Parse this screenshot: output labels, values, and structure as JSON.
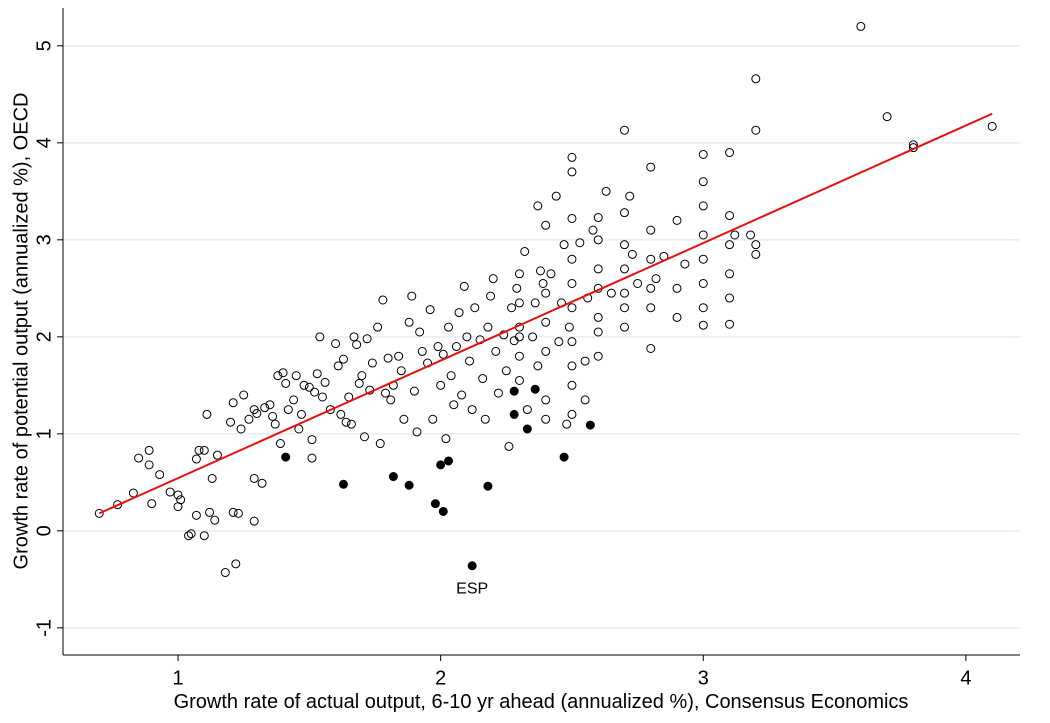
{
  "chart_data": {
    "type": "scatter",
    "xlabel": "Growth rate of actual output, 6-10 yr ahead (annualized %), Consensus Economics",
    "ylabel": "Growth rate of potential output (annualized %), OECD",
    "xlim": [
      0.562,
      4.206
    ],
    "ylim": [
      -1.28,
      5.39
    ],
    "xticks": [
      1,
      2,
      3,
      4
    ],
    "yticks": [
      -1,
      0,
      1,
      2,
      3,
      4,
      5
    ],
    "grid": true,
    "series": [
      {
        "color": "#000000",
        "filled": false,
        "points": [
          [
            0.7,
            0.18
          ],
          [
            0.77,
            0.27
          ],
          [
            0.83,
            0.39
          ],
          [
            0.85,
            0.75
          ],
          [
            0.89,
            0.83
          ],
          [
            0.89,
            0.68
          ],
          [
            0.9,
            0.28
          ],
          [
            0.93,
            0.58
          ],
          [
            0.97,
            0.4
          ],
          [
            1.0,
            0.37
          ],
          [
            1.0,
            0.25
          ],
          [
            1.01,
            0.32
          ],
          [
            1.04,
            -0.05
          ],
          [
            1.05,
            -0.03
          ],
          [
            1.07,
            0.74
          ],
          [
            1.07,
            0.16
          ],
          [
            1.08,
            0.83
          ],
          [
            1.1,
            0.83
          ],
          [
            1.1,
            -0.05
          ],
          [
            1.11,
            1.2
          ],
          [
            1.12,
            0.19
          ],
          [
            1.13,
            0.54
          ],
          [
            1.14,
            0.11
          ],
          [
            1.15,
            0.78
          ],
          [
            1.18,
            -0.43
          ],
          [
            1.2,
            1.12
          ],
          [
            1.21,
            0.19
          ],
          [
            1.21,
            1.32
          ],
          [
            1.22,
            -0.34
          ],
          [
            1.23,
            0.18
          ],
          [
            1.24,
            1.05
          ],
          [
            1.25,
            1.4
          ],
          [
            1.27,
            1.15
          ],
          [
            1.29,
            1.25
          ],
          [
            1.29,
            0.1
          ],
          [
            1.29,
            0.54
          ],
          [
            1.3,
            1.21
          ],
          [
            1.32,
            0.49
          ],
          [
            1.33,
            1.27
          ],
          [
            1.35,
            1.3
          ],
          [
            1.36,
            1.18
          ],
          [
            1.37,
            1.1
          ],
          [
            1.38,
            1.6
          ],
          [
            1.39,
            0.9
          ],
          [
            1.4,
            1.63
          ],
          [
            1.41,
            1.52
          ],
          [
            1.42,
            1.25
          ],
          [
            1.44,
            1.35
          ],
          [
            1.45,
            1.6
          ],
          [
            1.46,
            1.05
          ],
          [
            1.47,
            1.2
          ],
          [
            1.48,
            1.5
          ],
          [
            1.5,
            1.48
          ],
          [
            1.51,
            0.94
          ],
          [
            1.51,
            0.75
          ],
          [
            1.52,
            1.43
          ],
          [
            1.53,
            1.62
          ],
          [
            1.54,
            2.0
          ],
          [
            1.55,
            1.38
          ],
          [
            1.56,
            1.53
          ],
          [
            1.58,
            1.25
          ],
          [
            1.6,
            1.93
          ],
          [
            1.61,
            1.7
          ],
          [
            1.62,
            1.2
          ],
          [
            1.63,
            1.77
          ],
          [
            1.64,
            1.12
          ],
          [
            1.65,
            1.38
          ],
          [
            1.66,
            1.1
          ],
          [
            1.67,
            2.0
          ],
          [
            1.68,
            1.92
          ],
          [
            1.69,
            1.52
          ],
          [
            1.7,
            1.6
          ],
          [
            1.71,
            0.97
          ],
          [
            1.72,
            1.98
          ],
          [
            1.73,
            1.45
          ],
          [
            1.74,
            1.73
          ],
          [
            1.76,
            2.1
          ],
          [
            1.77,
            0.9
          ],
          [
            1.78,
            2.38
          ],
          [
            1.79,
            1.42
          ],
          [
            1.8,
            1.78
          ],
          [
            1.81,
            1.35
          ],
          [
            1.82,
            1.5
          ],
          [
            1.84,
            1.8
          ],
          [
            1.85,
            1.65
          ],
          [
            1.86,
            1.15
          ],
          [
            1.88,
            2.15
          ],
          [
            1.89,
            2.42
          ],
          [
            1.9,
            1.44
          ],
          [
            1.91,
            1.02
          ],
          [
            1.92,
            2.05
          ],
          [
            1.93,
            1.85
          ],
          [
            1.95,
            1.73
          ],
          [
            1.96,
            2.28
          ],
          [
            1.97,
            1.15
          ],
          [
            1.99,
            1.9
          ],
          [
            2.0,
            1.5
          ],
          [
            2.01,
            1.82
          ],
          [
            2.02,
            0.95
          ],
          [
            2.03,
            2.1
          ],
          [
            2.04,
            1.6
          ],
          [
            2.05,
            1.3
          ],
          [
            2.06,
            1.9
          ],
          [
            2.07,
            2.25
          ],
          [
            2.08,
            1.4
          ],
          [
            2.09,
            2.52
          ],
          [
            2.1,
            2.0
          ],
          [
            2.11,
            1.75
          ],
          [
            2.12,
            1.25
          ],
          [
            2.13,
            2.3
          ],
          [
            2.15,
            1.97
          ],
          [
            2.16,
            1.57
          ],
          [
            2.17,
            1.15
          ],
          [
            2.18,
            2.1
          ],
          [
            2.19,
            2.42
          ],
          [
            2.2,
            2.6
          ],
          [
            2.21,
            1.85
          ],
          [
            2.22,
            1.42
          ],
          [
            2.24,
            2.02
          ],
          [
            2.25,
            1.65
          ],
          [
            2.26,
            0.87
          ],
          [
            2.27,
            2.3
          ],
          [
            2.28,
            1.96
          ],
          [
            2.29,
            2.5
          ],
          [
            2.3,
            1.55
          ],
          [
            2.3,
            1.8
          ],
          [
            2.3,
            2.1
          ],
          [
            2.3,
            2.35
          ],
          [
            2.3,
            2.65
          ],
          [
            2.3,
            2.0
          ],
          [
            2.32,
            2.88
          ],
          [
            2.33,
            1.25
          ],
          [
            2.35,
            2.0
          ],
          [
            2.36,
            2.35
          ],
          [
            2.37,
            1.7
          ],
          [
            2.38,
            2.68
          ],
          [
            2.39,
            2.55
          ],
          [
            2.4,
            3.15
          ],
          [
            2.4,
            1.35
          ],
          [
            2.4,
            1.85
          ],
          [
            2.4,
            2.15
          ],
          [
            2.4,
            2.45
          ],
          [
            2.4,
            1.15
          ],
          [
            2.42,
            2.65
          ],
          [
            2.44,
            3.45
          ],
          [
            2.45,
            1.95
          ],
          [
            2.46,
            2.35
          ],
          [
            2.47,
            2.95
          ],
          [
            2.48,
            1.1
          ],
          [
            2.49,
            2.1
          ],
          [
            2.5,
            3.85
          ],
          [
            2.5,
            3.7
          ],
          [
            2.5,
            3.22
          ],
          [
            2.5,
            2.8
          ],
          [
            2.5,
            2.55
          ],
          [
            2.5,
            2.3
          ],
          [
            2.5,
            1.95
          ],
          [
            2.5,
            1.7
          ],
          [
            2.5,
            1.5
          ],
          [
            2.5,
            1.2
          ],
          [
            2.53,
            2.97
          ],
          [
            2.55,
            1.35
          ],
          [
            2.56,
            2.4
          ],
          [
            2.58,
            3.1
          ],
          [
            2.6,
            2.05
          ],
          [
            2.6,
            1.8
          ],
          [
            2.6,
            2.2
          ],
          [
            2.6,
            2.5
          ],
          [
            2.6,
            2.7
          ],
          [
            2.6,
            3.0
          ],
          [
            2.6,
            3.23
          ],
          [
            2.63,
            3.5
          ],
          [
            2.65,
            2.45
          ],
          [
            2.7,
            4.13
          ],
          [
            2.7,
            3.28
          ],
          [
            2.7,
            2.95
          ],
          [
            2.7,
            2.7
          ],
          [
            2.7,
            2.45
          ],
          [
            2.7,
            2.1
          ],
          [
            2.7,
            2.3
          ],
          [
            2.72,
            3.45
          ],
          [
            2.73,
            2.85
          ],
          [
            2.75,
            2.55
          ],
          [
            2.8,
            3.75
          ],
          [
            2.8,
            3.1
          ],
          [
            2.8,
            2.8
          ],
          [
            2.8,
            2.5
          ],
          [
            2.8,
            2.3
          ],
          [
            2.8,
            1.88
          ],
          [
            2.82,
            2.6
          ],
          [
            2.85,
            2.83
          ],
          [
            2.9,
            3.2
          ],
          [
            2.9,
            2.5
          ],
          [
            2.9,
            2.2
          ],
          [
            2.93,
            2.75
          ],
          [
            3.0,
            3.88
          ],
          [
            3.0,
            3.6
          ],
          [
            3.0,
            3.35
          ],
          [
            3.0,
            3.05
          ],
          [
            3.0,
            2.8
          ],
          [
            3.0,
            2.55
          ],
          [
            3.0,
            2.12
          ],
          [
            3.0,
            2.3
          ],
          [
            3.1,
            3.9
          ],
          [
            3.1,
            3.25
          ],
          [
            3.1,
            2.95
          ],
          [
            3.1,
            2.65
          ],
          [
            3.1,
            2.4
          ],
          [
            3.1,
            2.13
          ],
          [
            3.12,
            3.05
          ],
          [
            3.18,
            3.05
          ],
          [
            3.2,
            4.66
          ],
          [
            3.2,
            4.13
          ],
          [
            3.2,
            2.95
          ],
          [
            3.2,
            2.85
          ],
          [
            3.6,
            5.2
          ],
          [
            3.7,
            4.27
          ],
          [
            3.8,
            3.98
          ],
          [
            3.8,
            3.95
          ],
          [
            4.1,
            4.17
          ],
          [
            2.37,
            3.35
          ],
          [
            2.55,
            1.75
          ]
        ]
      },
      {
        "color": "#000000",
        "filled": true,
        "points": [
          [
            1.41,
            0.76
          ],
          [
            1.63,
            0.48
          ],
          [
            1.82,
            0.56
          ],
          [
            1.88,
            0.47
          ],
          [
            1.98,
            0.28
          ],
          [
            2.0,
            0.68
          ],
          [
            2.01,
            0.2
          ],
          [
            2.03,
            0.72
          ],
          [
            2.12,
            -0.36
          ],
          [
            2.18,
            0.46
          ],
          [
            2.28,
            1.2
          ],
          [
            2.28,
            1.44
          ],
          [
            2.33,
            1.05
          ],
          [
            2.36,
            1.46
          ],
          [
            2.47,
            0.76
          ],
          [
            2.57,
            1.09
          ]
        ]
      }
    ],
    "fit_line": {
      "color": "#e8100c",
      "x": [
        0.7,
        4.1
      ],
      "y": [
        0.18,
        4.3
      ]
    },
    "annotations": [
      {
        "text": "ESP",
        "x": 2.12,
        "y": -0.6
      }
    ]
  }
}
